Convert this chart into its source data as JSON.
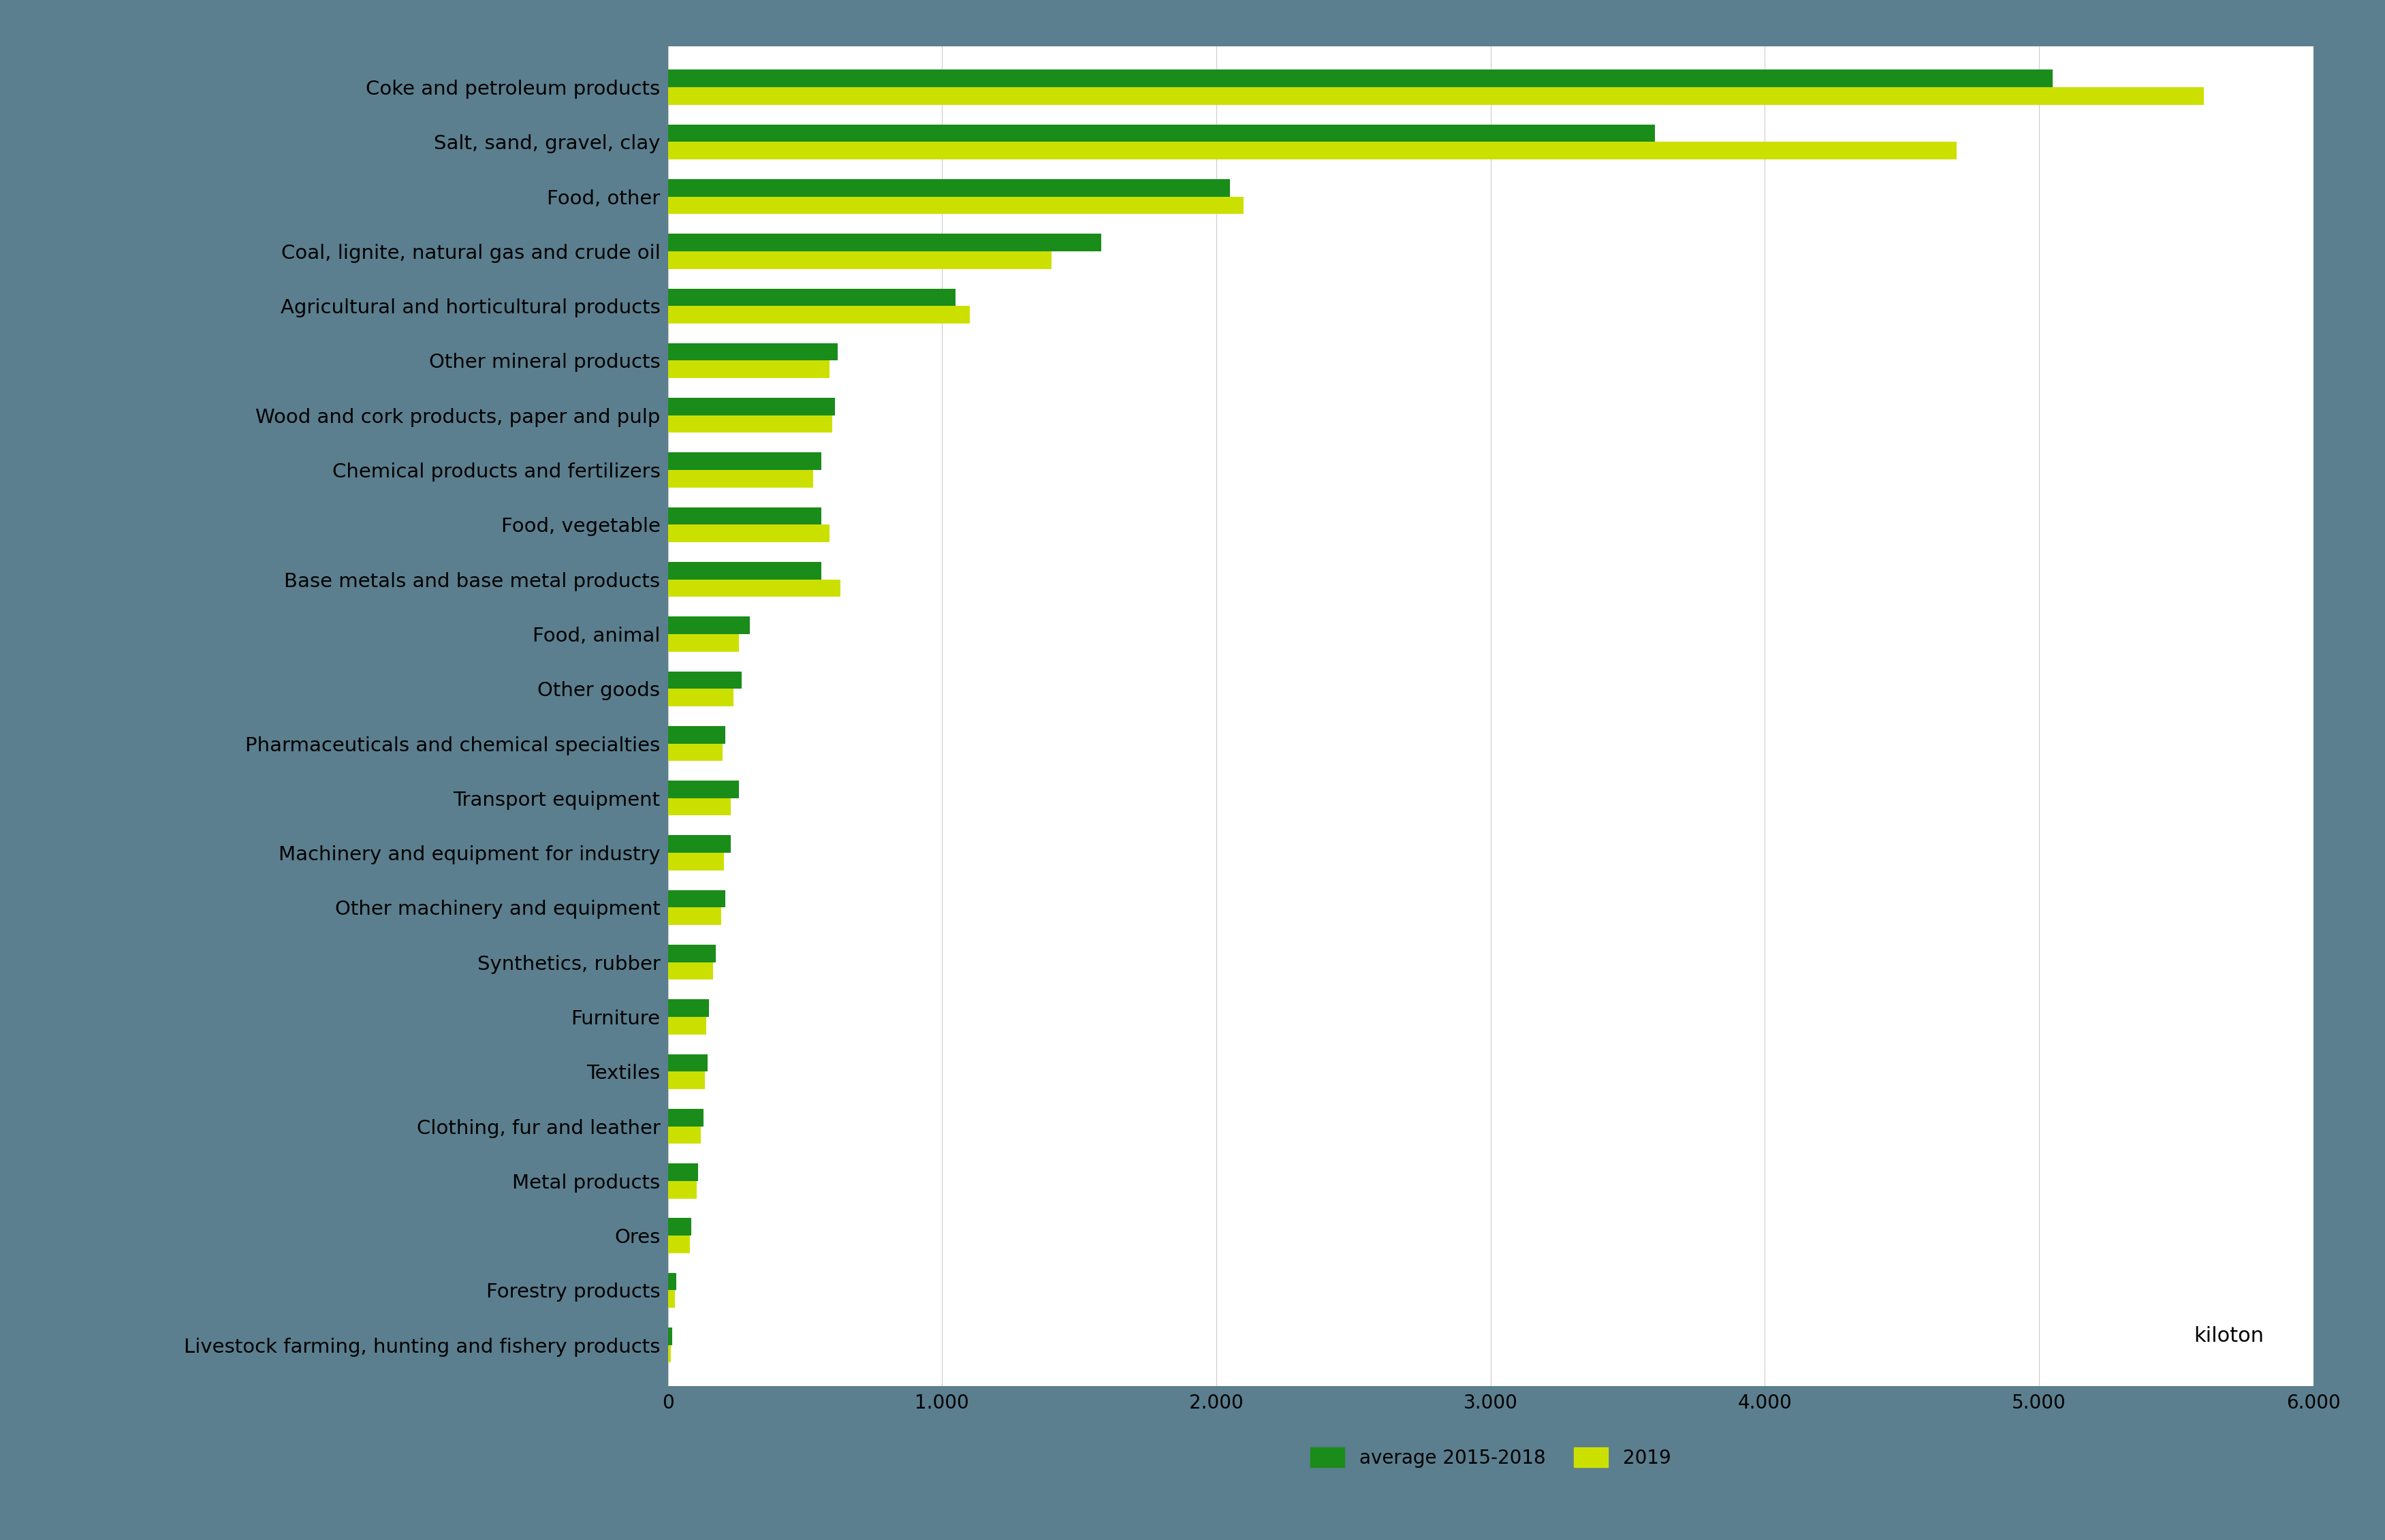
{
  "categories": [
    "Coke and petroleum products",
    "Salt, sand, gravel, clay",
    "Food, other",
    "Coal, lignite, natural gas and crude oil",
    "Agricultural and horticultural products",
    "Other mineral products",
    "Wood and cork products, paper and pulp",
    "Chemical products and fertilizers",
    "Food, vegetable",
    "Base metals and base metal products",
    "Food, animal",
    "Other goods",
    "Pharmaceuticals and chemical specialties",
    "Transport equipment",
    "Machinery and equipment for industry",
    "Other machinery and equipment",
    "Synthetics, rubber",
    "Furniture",
    "Textiles",
    "Clothing, fur and leather",
    "Metal products",
    "Ores",
    "Forestry products",
    "Livestock farming, hunting and fishery products"
  ],
  "avg_2015_2018": [
    5050,
    3600,
    2050,
    1580,
    1050,
    620,
    610,
    560,
    560,
    560,
    300,
    270,
    210,
    260,
    230,
    210,
    175,
    150,
    145,
    130,
    110,
    85,
    30,
    15
  ],
  "val_2019": [
    5600,
    4700,
    2100,
    1400,
    1100,
    590,
    600,
    530,
    590,
    630,
    260,
    240,
    200,
    230,
    205,
    195,
    165,
    140,
    135,
    120,
    105,
    80,
    25,
    10
  ],
  "color_avg": "#1a8c1a",
  "color_2019": "#cce000",
  "background_color": "#5b7f8f",
  "plot_bg_color": "#ffffff",
  "legend_avg": "average 2015-2018",
  "legend_2019": "2019",
  "unit_label": "kiloton",
  "xlim": [
    0,
    6000
  ],
  "xticks": [
    0,
    1000,
    2000,
    3000,
    4000,
    5000,
    6000
  ],
  "xtick_labels": [
    "0",
    "1.000",
    "2.000",
    "3.000",
    "4.000",
    "5.000",
    "6.000"
  ],
  "bar_height": 0.32,
  "label_fontsize": 21,
  "tick_fontsize": 20,
  "legend_fontsize": 20,
  "unit_fontsize": 22
}
